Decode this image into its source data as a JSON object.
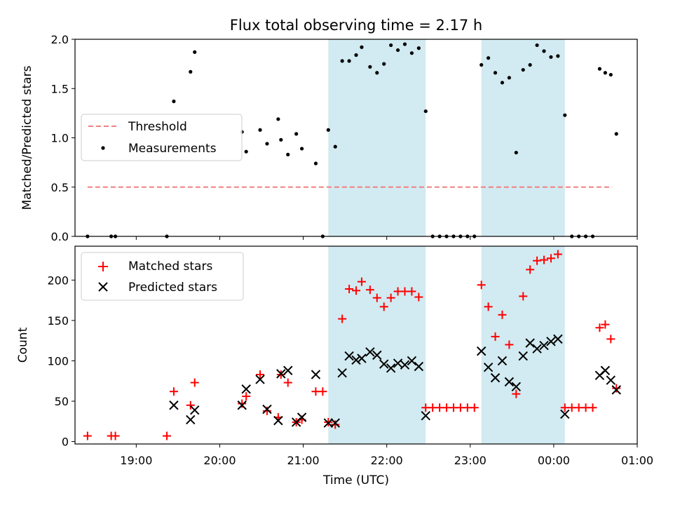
{
  "chart_data": [
    {
      "type": "scatter",
      "title": "Flux total observing time = 2.17 h",
      "xlabel": "",
      "ylabel": "Matched/Predicted stars",
      "ylim": [
        0,
        2.0
      ],
      "yticks": [
        "0.0",
        "0.5",
        "1.0",
        "1.5",
        "2.0"
      ],
      "xlim": [
        "18:16",
        "01:00"
      ],
      "legend_position": "center-left",
      "threshold": {
        "name": "Threshold",
        "y": 0.5,
        "x_from": "18:25",
        "x_to": "00:42",
        "color": "#f08080",
        "style": "dashed"
      },
      "shaded_intervals": [
        [
          "21:18",
          "22:28"
        ],
        [
          "23:08",
          "00:08"
        ]
      ],
      "shade_color": "#add8e6",
      "series": [
        {
          "name": "Measurements",
          "marker": "dot",
          "color": "#000000",
          "points": [
            [
              "18:25",
              0.0
            ],
            [
              "18:42",
              0.0
            ],
            [
              "18:45",
              0.0
            ],
            [
              "19:22",
              0.0
            ],
            [
              "19:27",
              1.37
            ],
            [
              "19:39",
              1.67
            ],
            [
              "19:42",
              1.87
            ],
            [
              "20:16",
              1.06
            ],
            [
              "20:19",
              0.86
            ],
            [
              "20:29",
              1.08
            ],
            [
              "20:34",
              0.94
            ],
            [
              "20:42",
              1.19
            ],
            [
              "20:44",
              0.98
            ],
            [
              "20:49",
              0.83
            ],
            [
              "20:55",
              1.04
            ],
            [
              "20:59",
              0.89
            ],
            [
              "21:09",
              0.74
            ],
            [
              "21:14",
              0.0
            ],
            [
              "21:18",
              1.08
            ],
            [
              "21:23",
              0.91
            ],
            [
              "21:28",
              1.78
            ],
            [
              "21:33",
              1.78
            ],
            [
              "21:38",
              1.84
            ],
            [
              "21:42",
              1.92
            ],
            [
              "21:48",
              1.72
            ],
            [
              "21:53",
              1.66
            ],
            [
              "21:58",
              1.75
            ],
            [
              "22:03",
              1.94
            ],
            [
              "22:08",
              1.89
            ],
            [
              "22:13",
              1.95
            ],
            [
              "22:18",
              1.86
            ],
            [
              "22:23",
              1.91
            ],
            [
              "22:28",
              1.27
            ],
            [
              "22:33",
              0.0
            ],
            [
              "22:38",
              0.0
            ],
            [
              "22:43",
              0.0
            ],
            [
              "22:48",
              0.0
            ],
            [
              "22:53",
              0.0
            ],
            [
              "22:58",
              0.0
            ],
            [
              "23:03",
              0.0
            ],
            [
              "23:08",
              1.74
            ],
            [
              "23:13",
              1.81
            ],
            [
              "23:18",
              1.66
            ],
            [
              "23:23",
              1.56
            ],
            [
              "23:28",
              1.61
            ],
            [
              "23:33",
              0.85
            ],
            [
              "23:38",
              1.69
            ],
            [
              "23:43",
              1.74
            ],
            [
              "23:48",
              1.94
            ],
            [
              "23:53",
              1.88
            ],
            [
              "23:58",
              1.82
            ],
            [
              "00:03",
              1.83
            ],
            [
              "00:08",
              1.23
            ],
            [
              "00:13",
              0.0
            ],
            [
              "00:18",
              0.0
            ],
            [
              "00:23",
              0.0
            ],
            [
              "00:28",
              0.0
            ],
            [
              "00:33",
              1.7
            ],
            [
              "00:37",
              1.66
            ],
            [
              "00:41",
              1.64
            ],
            [
              "00:45",
              1.04
            ]
          ]
        }
      ]
    },
    {
      "type": "scatter",
      "title": "",
      "xlabel": "Time (UTC)",
      "ylabel": "Count",
      "ylim": [
        -3,
        242
      ],
      "yticks": [
        "0",
        "50",
        "100",
        "150",
        "200"
      ],
      "xlim": [
        "18:16",
        "01:00"
      ],
      "xticks": [
        "19:00",
        "20:00",
        "21:00",
        "22:00",
        "23:00",
        "00:00",
        "01:00"
      ],
      "legend_position": "top-left",
      "shaded_intervals": [
        [
          "21:18",
          "22:28"
        ],
        [
          "23:08",
          "00:08"
        ]
      ],
      "shade_color": "#add8e6",
      "series": [
        {
          "name": "Matched stars",
          "marker": "plus",
          "color": "#ff0000",
          "points": [
            [
              "18:25",
              7
            ],
            [
              "18:42",
              7
            ],
            [
              "18:45",
              7
            ],
            [
              "19:22",
              7
            ],
            [
              "19:27",
              62
            ],
            [
              "19:39",
              45
            ],
            [
              "19:42",
              73
            ],
            [
              "20:16",
              47
            ],
            [
              "20:19",
              56
            ],
            [
              "20:29",
              83
            ],
            [
              "20:34",
              38
            ],
            [
              "20:42",
              30
            ],
            [
              "20:44",
              83
            ],
            [
              "20:49",
              73
            ],
            [
              "20:55",
              24
            ],
            [
              "20:59",
              27
            ],
            [
              "21:09",
              62
            ],
            [
              "21:14",
              62
            ],
            [
              "21:18",
              24
            ],
            [
              "21:23",
              21
            ],
            [
              "21:28",
              152
            ],
            [
              "21:33",
              189
            ],
            [
              "21:38",
              187
            ],
            [
              "21:42",
              198
            ],
            [
              "21:48",
              188
            ],
            [
              "21:53",
              178
            ],
            [
              "21:58",
              167
            ],
            [
              "22:03",
              178
            ],
            [
              "22:08",
              186
            ],
            [
              "22:13",
              186
            ],
            [
              "22:18",
              186
            ],
            [
              "22:23",
              179
            ],
            [
              "22:28",
              42
            ],
            [
              "22:33",
              42
            ],
            [
              "22:38",
              42
            ],
            [
              "22:43",
              42
            ],
            [
              "22:48",
              42
            ],
            [
              "22:53",
              42
            ],
            [
              "22:58",
              42
            ],
            [
              "23:03",
              42
            ],
            [
              "23:08",
              194
            ],
            [
              "23:13",
              167
            ],
            [
              "23:18",
              130
            ],
            [
              "23:23",
              157
            ],
            [
              "23:28",
              120
            ],
            [
              "23:33",
              59
            ],
            [
              "23:38",
              180
            ],
            [
              "23:43",
              213
            ],
            [
              "23:48",
              224
            ],
            [
              "23:53",
              225
            ],
            [
              "23:58",
              227
            ],
            [
              "00:03",
              232
            ],
            [
              "00:08",
              42
            ],
            [
              "00:13",
              42
            ],
            [
              "00:18",
              42
            ],
            [
              "00:23",
              42
            ],
            [
              "00:28",
              42
            ],
            [
              "00:33",
              141
            ],
            [
              "00:37",
              145
            ],
            [
              "00:41",
              127
            ],
            [
              "00:45",
              66
            ]
          ]
        },
        {
          "name": "Predicted stars",
          "marker": "x",
          "color": "#000000",
          "points": [
            [
              "19:27",
              45
            ],
            [
              "19:39",
              27
            ],
            [
              "19:42",
              39
            ],
            [
              "20:16",
              45
            ],
            [
              "20:19",
              65
            ],
            [
              "20:29",
              77
            ],
            [
              "20:34",
              40
            ],
            [
              "20:42",
              26
            ],
            [
              "20:44",
              84
            ],
            [
              "20:49",
              88
            ],
            [
              "20:55",
              24
            ],
            [
              "20:59",
              30
            ],
            [
              "21:09",
              83
            ],
            [
              "21:18",
              23
            ],
            [
              "21:23",
              23
            ],
            [
              "21:28",
              85
            ],
            [
              "21:33",
              106
            ],
            [
              "21:38",
              101
            ],
            [
              "21:42",
              103
            ],
            [
              "21:48",
              111
            ],
            [
              "21:53",
              107
            ],
            [
              "21:58",
              96
            ],
            [
              "22:03",
              91
            ],
            [
              "22:08",
              97
            ],
            [
              "22:13",
              95
            ],
            [
              "22:18",
              100
            ],
            [
              "22:23",
              93
            ],
            [
              "22:28",
              32
            ],
            [
              "23:08",
              112
            ],
            [
              "23:13",
              92
            ],
            [
              "23:18",
              79
            ],
            [
              "23:23",
              100
            ],
            [
              "23:28",
              74
            ],
            [
              "23:33",
              68
            ],
            [
              "23:38",
              106
            ],
            [
              "23:43",
              122
            ],
            [
              "23:48",
              115
            ],
            [
              "23:53",
              119
            ],
            [
              "23:58",
              124
            ],
            [
              "00:03",
              127
            ],
            [
              "00:08",
              34
            ],
            [
              "00:33",
              82
            ],
            [
              "00:37",
              88
            ],
            [
              "00:41",
              76
            ],
            [
              "00:45",
              64
            ]
          ]
        }
      ]
    }
  ]
}
